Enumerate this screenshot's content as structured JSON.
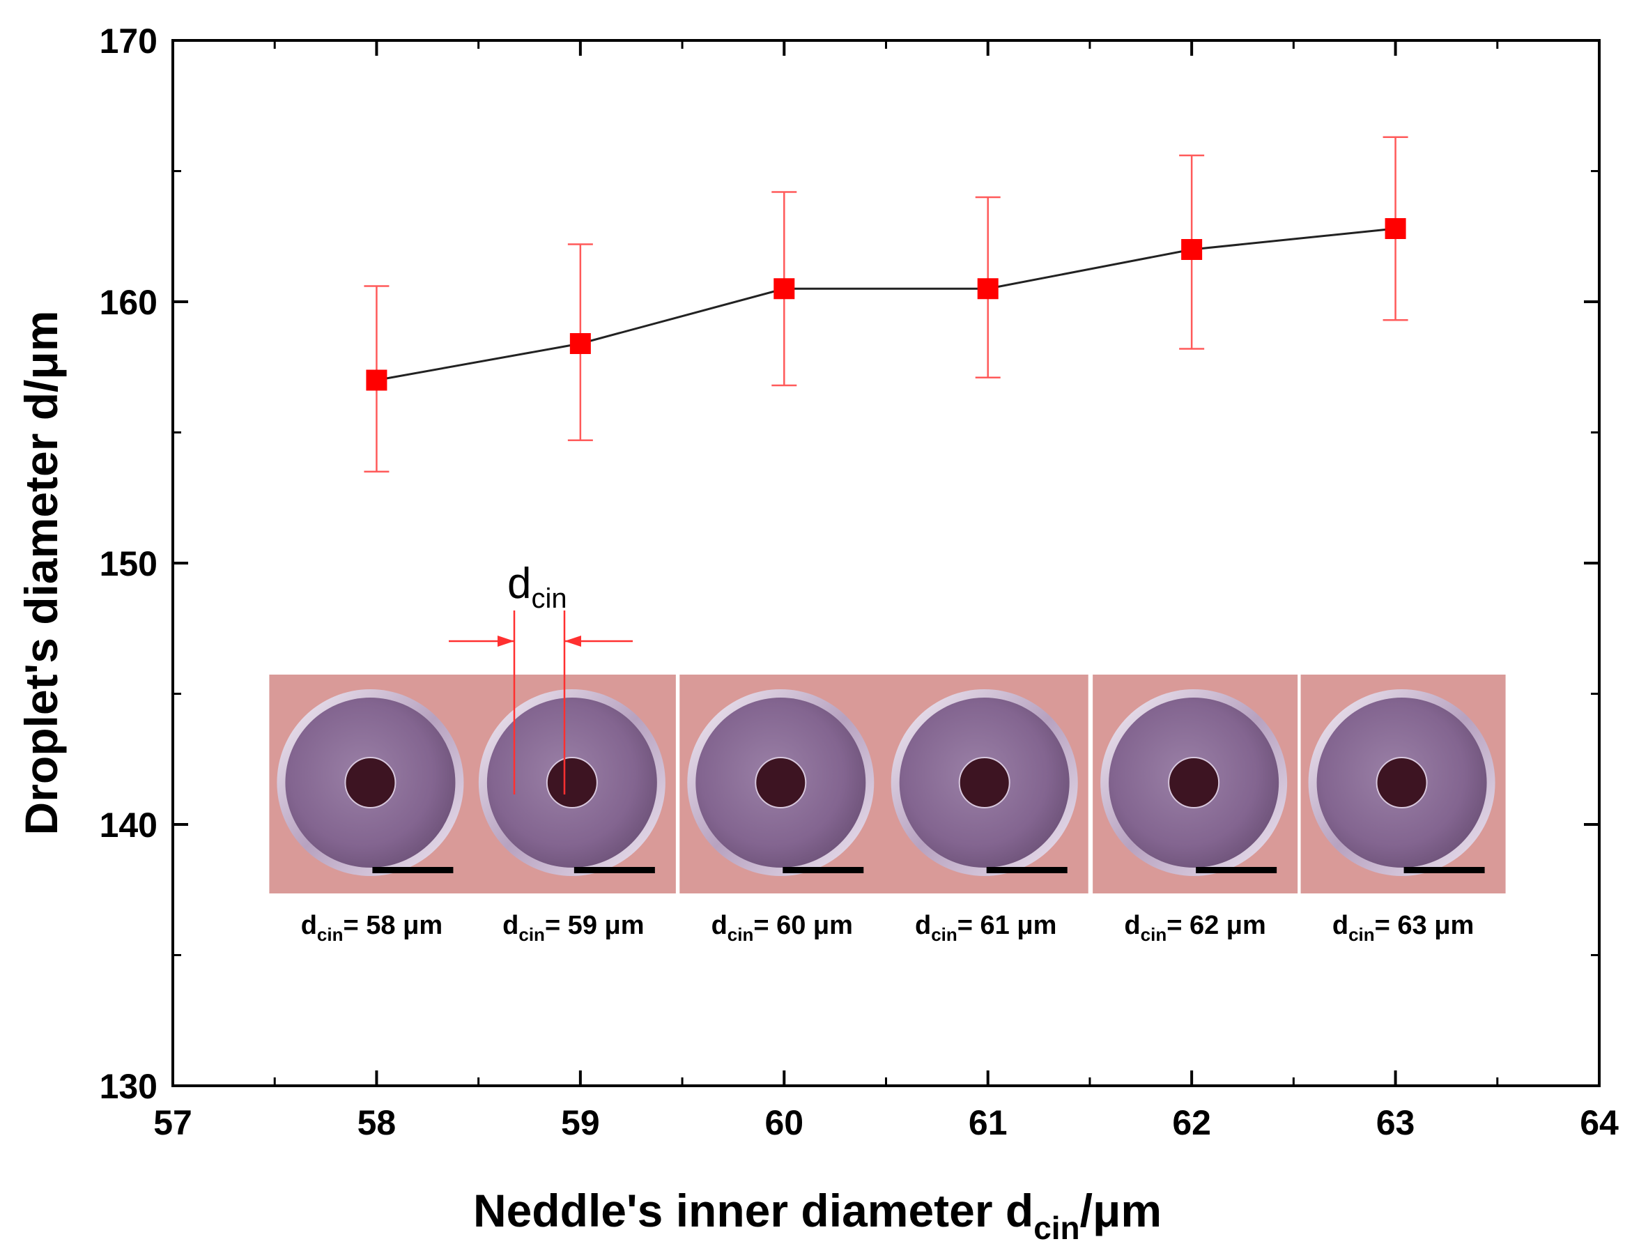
{
  "chart_data": {
    "type": "scatter",
    "xlabel": {
      "main": "Neddle's inner diameter d",
      "sub": "cin",
      "unit": "/μm"
    },
    "ylabel": "Droplet's diameter d/μm",
    "xlim": [
      57,
      64
    ],
    "ylim": [
      130,
      170
    ],
    "x_ticks": [
      "57",
      "58",
      "59",
      "60",
      "61",
      "62",
      "63",
      "64"
    ],
    "y_ticks": [
      "130",
      "140",
      "150",
      "160",
      "170"
    ],
    "grid": false,
    "legend": "none",
    "series": [
      {
        "x": [
          58,
          59,
          60,
          61,
          62,
          63
        ],
        "y": [
          157.0,
          158.4,
          160.5,
          160.5,
          162.0,
          162.8
        ],
        "err_low": [
          3.5,
          3.7,
          3.7,
          3.4,
          3.8,
          3.5
        ],
        "err_high": [
          3.6,
          3.8,
          3.7,
          3.5,
          3.6,
          3.5
        ],
        "marker": "square",
        "marker_color": "#ff0000",
        "line_color": "#222222",
        "errorbar_color": "#ff5a5a"
      }
    ],
    "annotation": {
      "main": "d",
      "sub": "cin"
    },
    "inset_labels": [
      {
        "d": "d",
        "sub": "cin",
        "value": "= 58  μm"
      },
      {
        "d": "d",
        "sub": "cin",
        "value": "= 59  μm"
      },
      {
        "d": "d",
        "sub": "cin",
        "value": "= 60  μm"
      },
      {
        "d": "d",
        "sub": "cin",
        "value": "= 61  μm"
      },
      {
        "d": "d",
        "sub": "cin",
        "value": "= 62  μm"
      },
      {
        "d": "d",
        "sub": "cin",
        "value": "= 63  μm"
      }
    ],
    "colors": {
      "inset_background": "#d99a98",
      "disc": "#8c6e96",
      "disc_rim": "#efe6f2",
      "hole": "#3d1422",
      "arrow": "#ff3030"
    }
  }
}
